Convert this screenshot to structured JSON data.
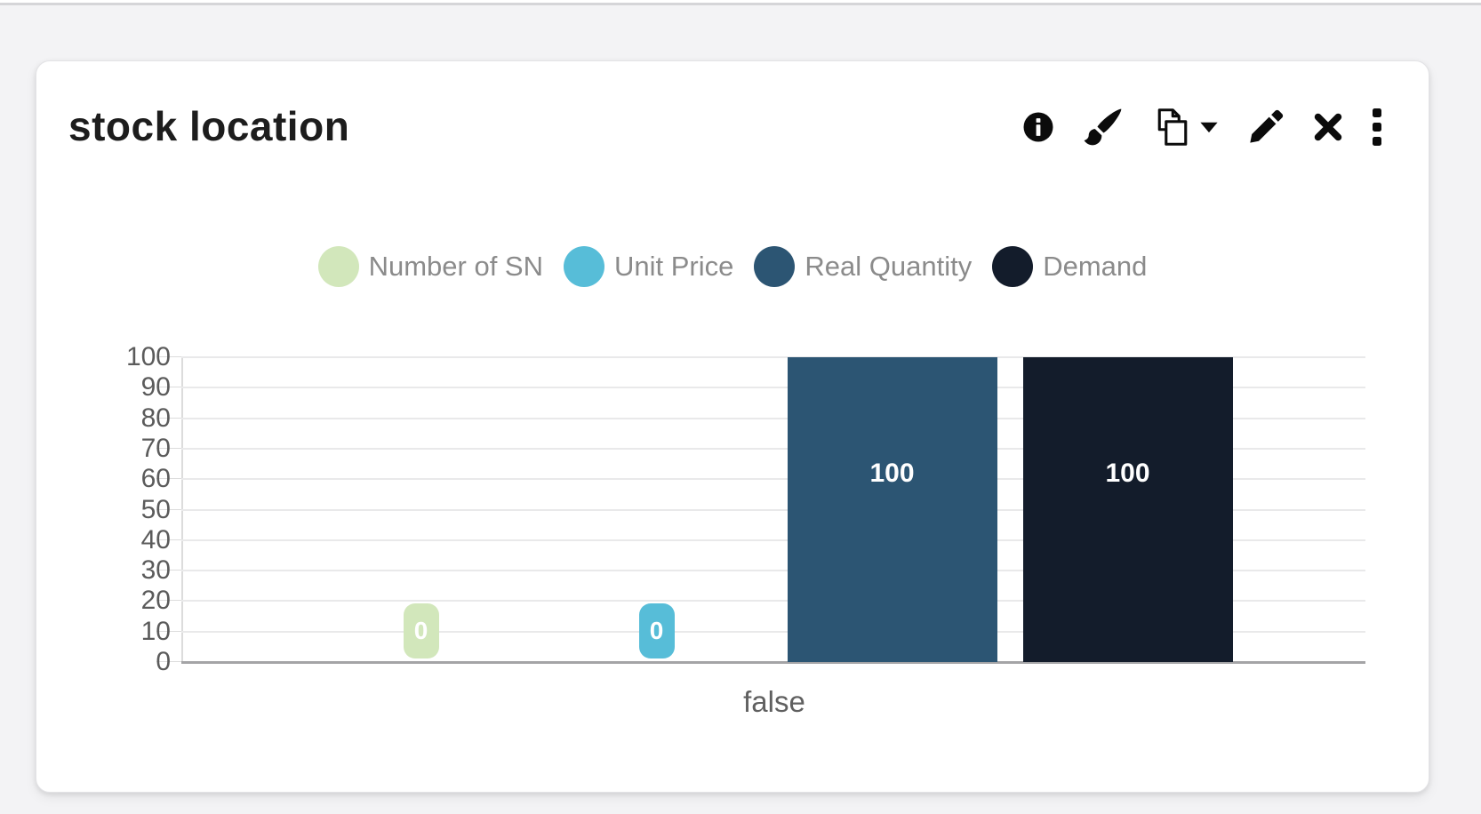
{
  "widget": {
    "title": "stock location",
    "toolbar": [
      {
        "label": "Show info",
        "icon": "info-circle-icon"
      },
      {
        "label": "Style",
        "icon": "paintbrush-icon"
      },
      {
        "label": "Duplicate",
        "icon": "copy-icon",
        "has_dropdown": true
      },
      {
        "label": "Edit",
        "icon": "pencil-icon"
      },
      {
        "label": "Remove",
        "icon": "close-icon"
      },
      {
        "label": "More options",
        "icon": "kebab-menu-icon"
      }
    ]
  },
  "chart_data": {
    "type": "bar",
    "title": "stock location",
    "categories": [
      "false"
    ],
    "series": [
      {
        "name": "Number of SN",
        "values": [
          0
        ],
        "color": "#d2e7bb"
      },
      {
        "name": "Unit Price",
        "values": [
          0
        ],
        "color": "#57bdd8"
      },
      {
        "name": "Real Quantity",
        "values": [
          100
        ],
        "color": "#2c5573"
      },
      {
        "name": "Demand",
        "values": [
          100
        ],
        "color": "#131c2b"
      }
    ],
    "ylim": [
      0,
      100
    ],
    "yticks": [
      0,
      10,
      20,
      30,
      40,
      50,
      60,
      70,
      80,
      90,
      100
    ],
    "grid": true,
    "legend_position": "top",
    "data_labels": true,
    "xlabel": "",
    "ylabel": "",
    "axis_text_color": "#5b5b5b",
    "legend_text_color": "#8b8b8b"
  }
}
